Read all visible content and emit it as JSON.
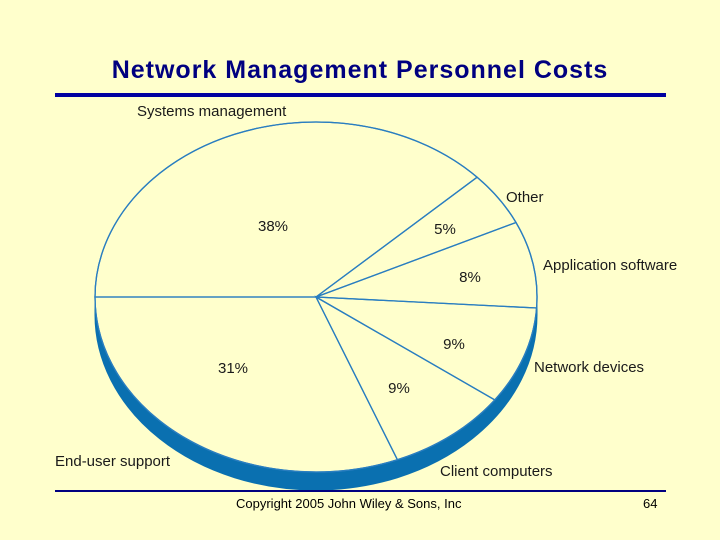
{
  "slide": {
    "title": "Network Management Personnel Costs",
    "copyright": "Copyright 2005 John Wiley & Sons, Inc",
    "page_number": "64"
  },
  "colors": {
    "background": "#ffffcc",
    "title": "#000080",
    "pie_line": "#2a7ec0",
    "pie_side": "#0a70b0"
  },
  "chart_data": {
    "type": "pie",
    "title": "",
    "slices": [
      {
        "label": "Systems management",
        "value": 38,
        "value_label": "38%"
      },
      {
        "label": "Other",
        "value": 5,
        "value_label": "5%"
      },
      {
        "label": "Application software",
        "value": 8,
        "value_label": "8%"
      },
      {
        "label": "Network devices",
        "value": 9,
        "value_label": "9%"
      },
      {
        "label": "Client computers",
        "value": 9,
        "value_label": "9%"
      },
      {
        "label": "End-user support",
        "value": 31,
        "value_label": "31%"
      }
    ]
  }
}
